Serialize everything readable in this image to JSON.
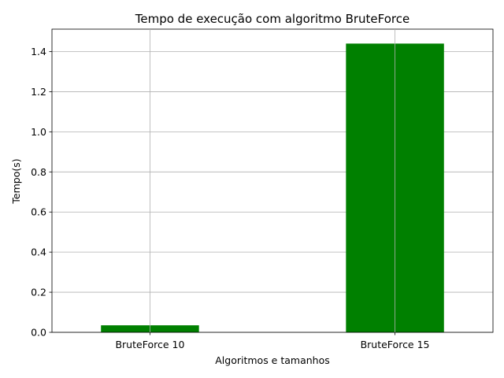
{
  "chart_data": {
    "type": "bar",
    "title": "Tempo de execução com algoritmo BruteForce",
    "xlabel": "Algoritmos e tamanhos",
    "ylabel": "Tempo(s)",
    "categories": [
      "BruteForce 10",
      "BruteForce 15"
    ],
    "values": [
      0.035,
      1.44
    ],
    "ylim": [
      0,
      1.512
    ],
    "yticks": [
      "0.0",
      "0.2",
      "0.4",
      "0.6",
      "0.8",
      "1.0",
      "1.2",
      "1.4"
    ],
    "grid": true,
    "bar_color": "#008000"
  }
}
